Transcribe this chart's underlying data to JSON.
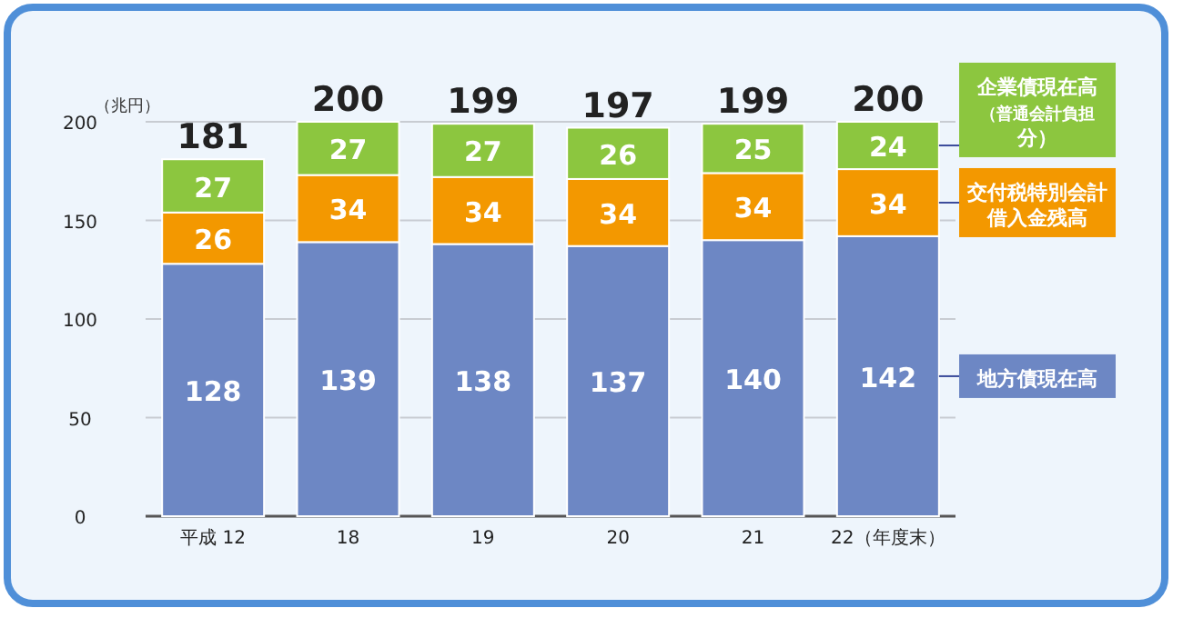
{
  "chart_data": {
    "type": "bar",
    "stacked": true,
    "ylabel": "（兆円）",
    "categories": [
      "平成 12",
      "18",
      "19",
      "20",
      "21",
      "22（年度末）"
    ],
    "series": [
      {
        "name": "地方債現在高",
        "color": "#6d87c4",
        "values": [
          128,
          139,
          138,
          137,
          140,
          142
        ]
      },
      {
        "name": "交付税特別会計借入金残高",
        "color": "#f39800",
        "values": [
          26,
          34,
          34,
          34,
          34,
          34
        ]
      },
      {
        "name": "企業債現在高（普通会計負担分）",
        "color": "#8cc63f",
        "values": [
          27,
          27,
          27,
          26,
          25,
          24
        ]
      }
    ],
    "totals": [
      "181",
      "200",
      "199",
      "197",
      "199",
      "200"
    ],
    "data_labels": true,
    "ylim": [
      0,
      200
    ],
    "yticks": [
      0,
      50,
      100,
      150,
      200
    ],
    "grid": "y",
    "legend": "right"
  }
}
